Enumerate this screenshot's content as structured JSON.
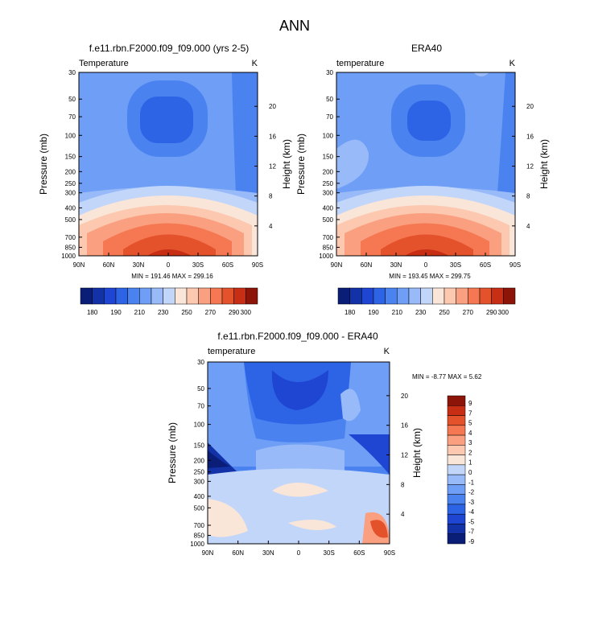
{
  "page_title": "ANN",
  "colorbar_top_ticks": [
    "180",
    "190",
    "210",
    "230",
    "250",
    "270",
    "290",
    "300"
  ],
  "colorbar_diff_ticks": [
    "9",
    "7",
    "5",
    "4",
    "3",
    "2",
    "1",
    "0",
    "-1",
    "-2",
    "-3",
    "-4",
    "-5",
    "-7",
    "-9"
  ],
  "chart_data": [
    {
      "type": "heatmap",
      "title": "f.e11.rbn.F2000.f09_f09.000 (yrs 2-5)",
      "left_label": "Temperature",
      "right_label": "K",
      "ylabel": "Pressure (mb)",
      "y2label": "Height (km)",
      "x_ticks": [
        "90N",
        "60N",
        "30N",
        "0",
        "30S",
        "60S",
        "90S"
      ],
      "y_ticks": [
        "30",
        "50",
        "70",
        "100",
        "150",
        "200",
        "250",
        "300",
        "400",
        "500",
        "700",
        "850",
        "1000"
      ],
      "y2_ticks": [
        "20",
        "16",
        "12",
        "8",
        "4"
      ],
      "stats": "MIN = 191.46   MAX = 299.16",
      "min": 191.46,
      "max": 299.16,
      "color_levels": [
        180,
        190,
        200,
        210,
        220,
        230,
        240,
        250,
        260,
        270,
        280,
        290,
        295,
        300
      ]
    },
    {
      "type": "heatmap",
      "title": "ERA40",
      "left_label": "temperature",
      "right_label": "K",
      "ylabel": "Pressure (mb)",
      "y2label": "Height (km)",
      "x_ticks": [
        "90N",
        "60N",
        "30N",
        "0",
        "30S",
        "60S",
        "90S"
      ],
      "y_ticks": [
        "30",
        "50",
        "70",
        "100",
        "150",
        "200",
        "250",
        "300",
        "400",
        "500",
        "700",
        "850",
        "1000"
      ],
      "y2_ticks": [
        "20",
        "16",
        "12",
        "8",
        "4"
      ],
      "stats": "MIN = 193.45   MAX = 299.75",
      "min": 193.45,
      "max": 299.75,
      "color_levels": [
        180,
        190,
        200,
        210,
        220,
        230,
        240,
        250,
        260,
        270,
        280,
        290,
        295,
        300
      ]
    },
    {
      "type": "heatmap",
      "title": "f.e11.rbn.F2000.f09_f09.000 - ERA40",
      "left_label": "temperature",
      "right_label": "K",
      "ylabel": "Pressure (mb)",
      "y2label": "Height (km)",
      "x_ticks": [
        "90N",
        "60N",
        "30N",
        "0",
        "30S",
        "60S",
        "90S"
      ],
      "y_ticks": [
        "30",
        "50",
        "70",
        "100",
        "150",
        "200",
        "250",
        "300",
        "400",
        "500",
        "700",
        "850",
        "1000"
      ],
      "y2_ticks": [
        "20",
        "16",
        "12",
        "8",
        "4"
      ],
      "stats": "MIN =  -8.77   MAX =   5.62",
      "min": -8.77,
      "max": 5.62,
      "color_levels": [
        -9,
        -7,
        -5,
        -4,
        -3,
        -2,
        -1,
        0,
        1,
        2,
        3,
        4,
        5,
        7,
        9
      ]
    }
  ],
  "colors": {
    "top_palette": [
      "#0a1e78",
      "#1432a8",
      "#1e46d2",
      "#2d64e6",
      "#4a82f0",
      "#6e9ef5",
      "#98baf8",
      "#c2d6fa",
      "#fae6d8",
      "#fcc8b0",
      "#faa080",
      "#f57852",
      "#e4522c",
      "#c82e14",
      "#8c1408"
    ],
    "diff_palette": [
      "#0a1e78",
      "#1432a8",
      "#1e46d2",
      "#2d64e6",
      "#4a82f0",
      "#6e9ef5",
      "#98baf8",
      "#c2d6fa",
      "#fae6d8",
      "#fcc8b0",
      "#faa080",
      "#f57852",
      "#e4522c",
      "#c82e14",
      "#8c1408"
    ]
  }
}
